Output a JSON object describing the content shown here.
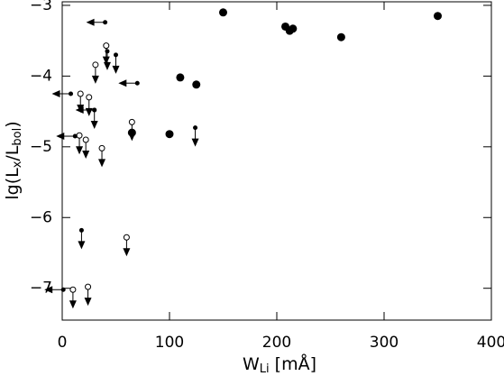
{
  "chart_data": {
    "type": "scatter",
    "xlabel": [
      "W",
      "Li",
      " [mÅ]"
    ],
    "ylabel": [
      "lg(L",
      "x",
      "/L",
      "bol",
      ")"
    ],
    "xlim": [
      0,
      400
    ],
    "xticks": [
      0,
      100,
      200,
      300,
      400
    ],
    "ylim": [
      -7.45,
      -2.95
    ],
    "yticks": [
      {
        "value": -3,
        "label": "−3"
      },
      {
        "value": -4,
        "label": "−4"
      },
      {
        "value": -5,
        "label": "−5"
      },
      {
        "value": -6,
        "label": "−6"
      },
      {
        "value": -7,
        "label": "−7"
      }
    ],
    "series": [
      {
        "color": "#000000",
        "marker": "filled",
        "x": [
          150,
          208,
          212,
          215,
          260,
          350,
          110,
          125,
          100,
          65
        ],
        "values": [
          -3.1,
          -3.3,
          -3.36,
          -3.33,
          -3.45,
          -3.15,
          -4.02,
          -4.12,
          -4.82,
          -4.8
        ]
      },
      {
        "color": "#000000",
        "marker": "open",
        "limit": "down",
        "x": [
          41,
          31,
          17,
          25,
          22,
          16,
          60,
          37,
          10,
          24,
          65
        ],
        "values": [
          -3.57,
          -3.84,
          -4.25,
          -4.3,
          -4.9,
          -4.84,
          -6.28,
          -5.02,
          -7.02,
          -6.98,
          -4.65
        ]
      },
      {
        "color": "#000000",
        "marker": "dot",
        "limit": "down",
        "x": [
          50,
          18,
          124,
          42,
          30
        ],
        "values": [
          -3.7,
          -6.18,
          -4.73,
          -3.65,
          -4.48
        ]
      },
      {
        "color": "#000000",
        "marker": "dot",
        "limit": "left",
        "x": [
          40,
          70,
          30,
          12,
          1,
          8
        ],
        "values": [
          -3.24,
          -4.1,
          -4.48,
          -4.85,
          -7.02,
          -4.25
        ]
      }
    ]
  }
}
